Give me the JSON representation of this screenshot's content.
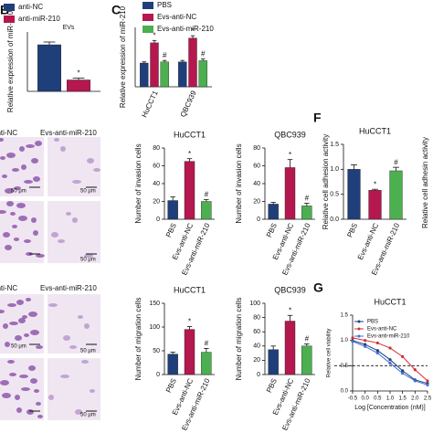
{
  "panel_letters": [
    "B",
    "C",
    "F",
    "G"
  ],
  "image_labels": {
    "invasion_columns": [
      "anti-NC",
      "Evs-anti-miR-210"
    ],
    "migration_columns": [
      "anti-NC",
      "Evs-anti-miR-210"
    ],
    "scale_bars": [
      "50 μm",
      "50 μm",
      "50 μm",
      "50 μm",
      "50 μm",
      "50 μm"
    ]
  },
  "extra_axis_label": "Relative cell adhesin activity",
  "chart_data": [
    {
      "type": "bar",
      "annotation": "EVs",
      "ylabel": "Relative expression of miR-210",
      "categories": [
        null
      ],
      "ylim": [
        0,
        1.3
      ],
      "series": [
        {
          "name": "anti-NC",
          "color": "#1f3f7a",
          "values": [
            1.02
          ],
          "errors": [
            0.06
          ]
        },
        {
          "name": "anti-miR-210",
          "color": "#b5174f",
          "values": [
            0.25
          ],
          "errors": [
            0.04
          ],
          "markers": [
            "*"
          ]
        }
      ]
    },
    {
      "type": "bar",
      "ylabel": "Relative expression of miR-210",
      "categories": [
        "HuCCT1",
        "QBC939"
      ],
      "ylim": [
        0,
        2.5
      ],
      "series": [
        {
          "name": "PBS",
          "color": "#1f3f7a",
          "values": [
            1.0,
            1.05
          ],
          "errors": [
            0.05,
            0.06
          ]
        },
        {
          "name": "Evs-anti-NC",
          "color": "#b5174f",
          "values": [
            1.85,
            2.05
          ],
          "errors": [
            0.1,
            0.1
          ],
          "markers": [
            "*",
            "*"
          ]
        },
        {
          "name": "Evs-anti-miR-210",
          "color": "#4caf50",
          "values": [
            1.05,
            1.1
          ],
          "errors": [
            0.06,
            0.07
          ],
          "markers": [
            "#",
            "#"
          ]
        }
      ]
    },
    {
      "type": "bar",
      "title": "HuCCT1",
      "ylabel": "Number of invasion cells",
      "categories": [
        "PBS",
        "Evs-anti-NC",
        "Evs-anti-miR-210"
      ],
      "values": [
        21,
        65,
        20
      ],
      "errors": [
        4,
        3,
        2
      ],
      "markers": [
        null,
        "*",
        "#"
      ],
      "colors": [
        "#1f3f7a",
        "#b5174f",
        "#4caf50"
      ],
      "ylim": [
        0,
        80
      ],
      "yticks": [
        0,
        20,
        40,
        60,
        80
      ]
    },
    {
      "type": "bar",
      "title": "QBC939",
      "ylabel": "Number of invasion cells",
      "categories": [
        "PBS",
        "Evs-anti-NC",
        "Evs-anti-miR-210"
      ],
      "values": [
        17,
        58,
        15
      ],
      "errors": [
        2,
        9,
        3
      ],
      "markers": [
        null,
        "*",
        "#"
      ],
      "colors": [
        "#1f3f7a",
        "#b5174f",
        "#4caf50"
      ],
      "ylim": [
        0,
        80
      ],
      "yticks": [
        0,
        20,
        40,
        60,
        80
      ]
    },
    {
      "type": "bar",
      "title": "HuCCT1",
      "ylabel": "Number of migration cells",
      "categories": [
        "PBS",
        "Evs-anti-NC",
        "Evs-anti-miR-210"
      ],
      "values": [
        43,
        95,
        47
      ],
      "errors": [
        4,
        6,
        8
      ],
      "markers": [
        null,
        "*",
        "#"
      ],
      "colors": [
        "#1f3f7a",
        "#b5174f",
        "#4caf50"
      ],
      "ylim": [
        0,
        150
      ],
      "yticks": [
        0,
        50,
        100,
        150
      ]
    },
    {
      "type": "bar",
      "title": "QBC939",
      "ylabel": "Number of migration cells",
      "categories": [
        "PBS",
        "Evs-anti-NC",
        "Evs-anti-miR-210"
      ],
      "values": [
        35,
        75,
        40
      ],
      "errors": [
        5,
        8,
        3
      ],
      "markers": [
        null,
        "*",
        "#"
      ],
      "colors": [
        "#1f3f7a",
        "#b5174f",
        "#4caf50"
      ],
      "ylim": [
        0,
        100
      ],
      "yticks": [
        0,
        20,
        40,
        60,
        80,
        100
      ]
    },
    {
      "type": "bar",
      "title": "HuCCT1",
      "ylabel": "Relative cell adhesion activity",
      "categories": [
        "PBS",
        "Evs-anti-NC",
        "Evs-anti-miR-210"
      ],
      "values": [
        1.0,
        0.58,
        0.97
      ],
      "errors": [
        0.09,
        0.02,
        0.07
      ],
      "markers": [
        null,
        "*",
        "#"
      ],
      "colors": [
        "#1f3f7a",
        "#b5174f",
        "#4caf50"
      ],
      "ylim": [
        0,
        1.5
      ],
      "yticks": [
        {
          "value": 0,
          "label": "0.0"
        },
        {
          "value": 0.5,
          "label": "0.5"
        },
        {
          "value": 1,
          "label": "1.0"
        },
        {
          "value": 1.5,
          "label": "1.5"
        }
      ]
    },
    {
      "type": "line",
      "title": "HuCCT1",
      "xlabel": "Log [Concentration (nM)]",
      "ylabel": "Relative cell viability",
      "x": [
        -0.5,
        0,
        0.5,
        1,
        1.5,
        2,
        2.5
      ],
      "xlim": [
        -0.5,
        2.5
      ],
      "xticks": [
        -0.5,
        {
          "value": 0,
          "label": "0.0"
        },
        0.5,
        {
          "value": 1,
          "label": "1.0"
        },
        1.5,
        {
          "value": 2,
          "label": "2.0"
        },
        2.5
      ],
      "ylim": [
        0,
        1.5
      ],
      "yticks": [
        {
          "value": 0,
          "label": "0.0"
        },
        {
          "value": 0.5,
          "label": "0.5"
        },
        {
          "value": 1,
          "label": "1.0"
        },
        {
          "value": 1.5,
          "label": "1.5"
        }
      ],
      "reference_line": 0.5,
      "series": [
        {
          "name": "PBS",
          "color": "#1f3f7a",
          "values": [
            1.0,
            0.92,
            0.8,
            0.62,
            0.4,
            0.22,
            0.15
          ]
        },
        {
          "name": "Evs-anti-NC",
          "color": "#d32f2f",
          "values": [
            1.05,
            1.0,
            0.95,
            0.85,
            0.68,
            0.42,
            0.2
          ]
        },
        {
          "name": "Evs-anti-miR-210",
          "color": "#3f6fd8",
          "values": [
            0.98,
            0.88,
            0.75,
            0.55,
            0.35,
            0.2,
            0.12
          ]
        }
      ]
    }
  ]
}
